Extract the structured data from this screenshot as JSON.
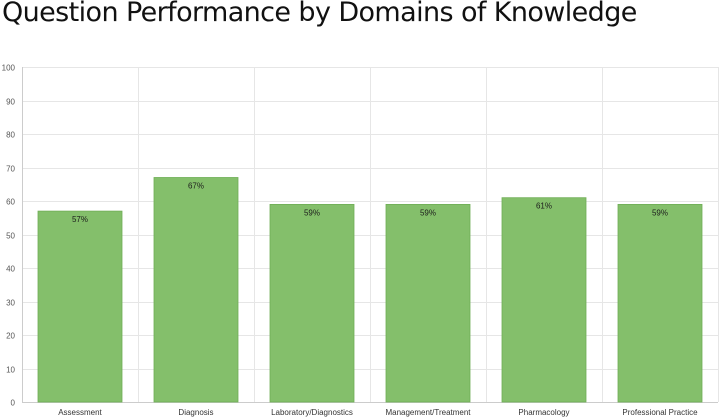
{
  "chart_data": {
    "type": "bar",
    "title": "Question Performance by Domains of Knowledge",
    "categories": [
      "Assessment",
      "Diagnosis",
      "Laboratory/Diagnostics",
      "Management/Treatment",
      "Pharmacology",
      "Professional Practice"
    ],
    "values": [
      57,
      67,
      59,
      59,
      61,
      59
    ],
    "data_labels": [
      "57%",
      "67%",
      "59%",
      "59%",
      "61%",
      "59%"
    ],
    "ylim": [
      0,
      100
    ],
    "yticks": [
      0,
      10,
      20,
      30,
      40,
      50,
      60,
      70,
      80,
      90,
      100
    ],
    "grid": true,
    "legend": "none",
    "bar_color": "#84bf6b",
    "bar_edge_color": "#6fae55"
  }
}
